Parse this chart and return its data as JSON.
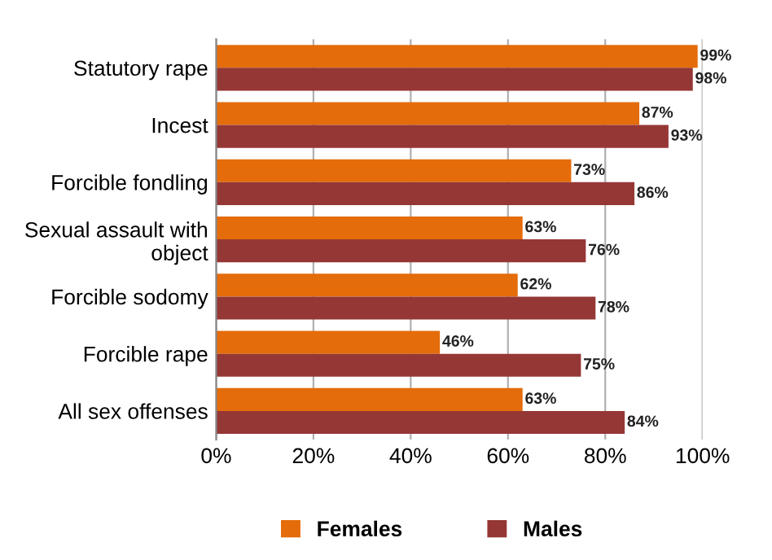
{
  "chart_data": {
    "type": "bar",
    "orientation": "horizontal",
    "categories": [
      "Statutory rape",
      "Incest",
      "Forcible fondling",
      "Sexual assault with\nobject",
      "Forcible sodomy",
      "Forcible rape",
      "All sex offenses"
    ],
    "series": [
      {
        "name": "Females",
        "color": "#e46c0a",
        "values": [
          99,
          87,
          73,
          63,
          62,
          46,
          63
        ],
        "value_labels": [
          "99%",
          "87%",
          "73%",
          "63%",
          "62%",
          "46%",
          "63%"
        ]
      },
      {
        "name": "Males",
        "color": "#953735",
        "values": [
          98,
          93,
          86,
          76,
          78,
          75,
          84
        ],
        "value_labels": [
          "98%",
          "93%",
          "86%",
          "76%",
          "78%",
          "75%",
          "84%"
        ]
      }
    ],
    "xlim": [
      0,
      100
    ],
    "xticks": [
      {
        "value": 0,
        "label": "0%"
      },
      {
        "value": 20,
        "label": "20%"
      },
      {
        "value": 40,
        "label": "40%"
      },
      {
        "value": 60,
        "label": "60%"
      },
      {
        "value": 80,
        "label": "80%"
      },
      {
        "value": 100,
        "label": "100%"
      }
    ],
    "grid": "x",
    "legend": "bottom"
  }
}
